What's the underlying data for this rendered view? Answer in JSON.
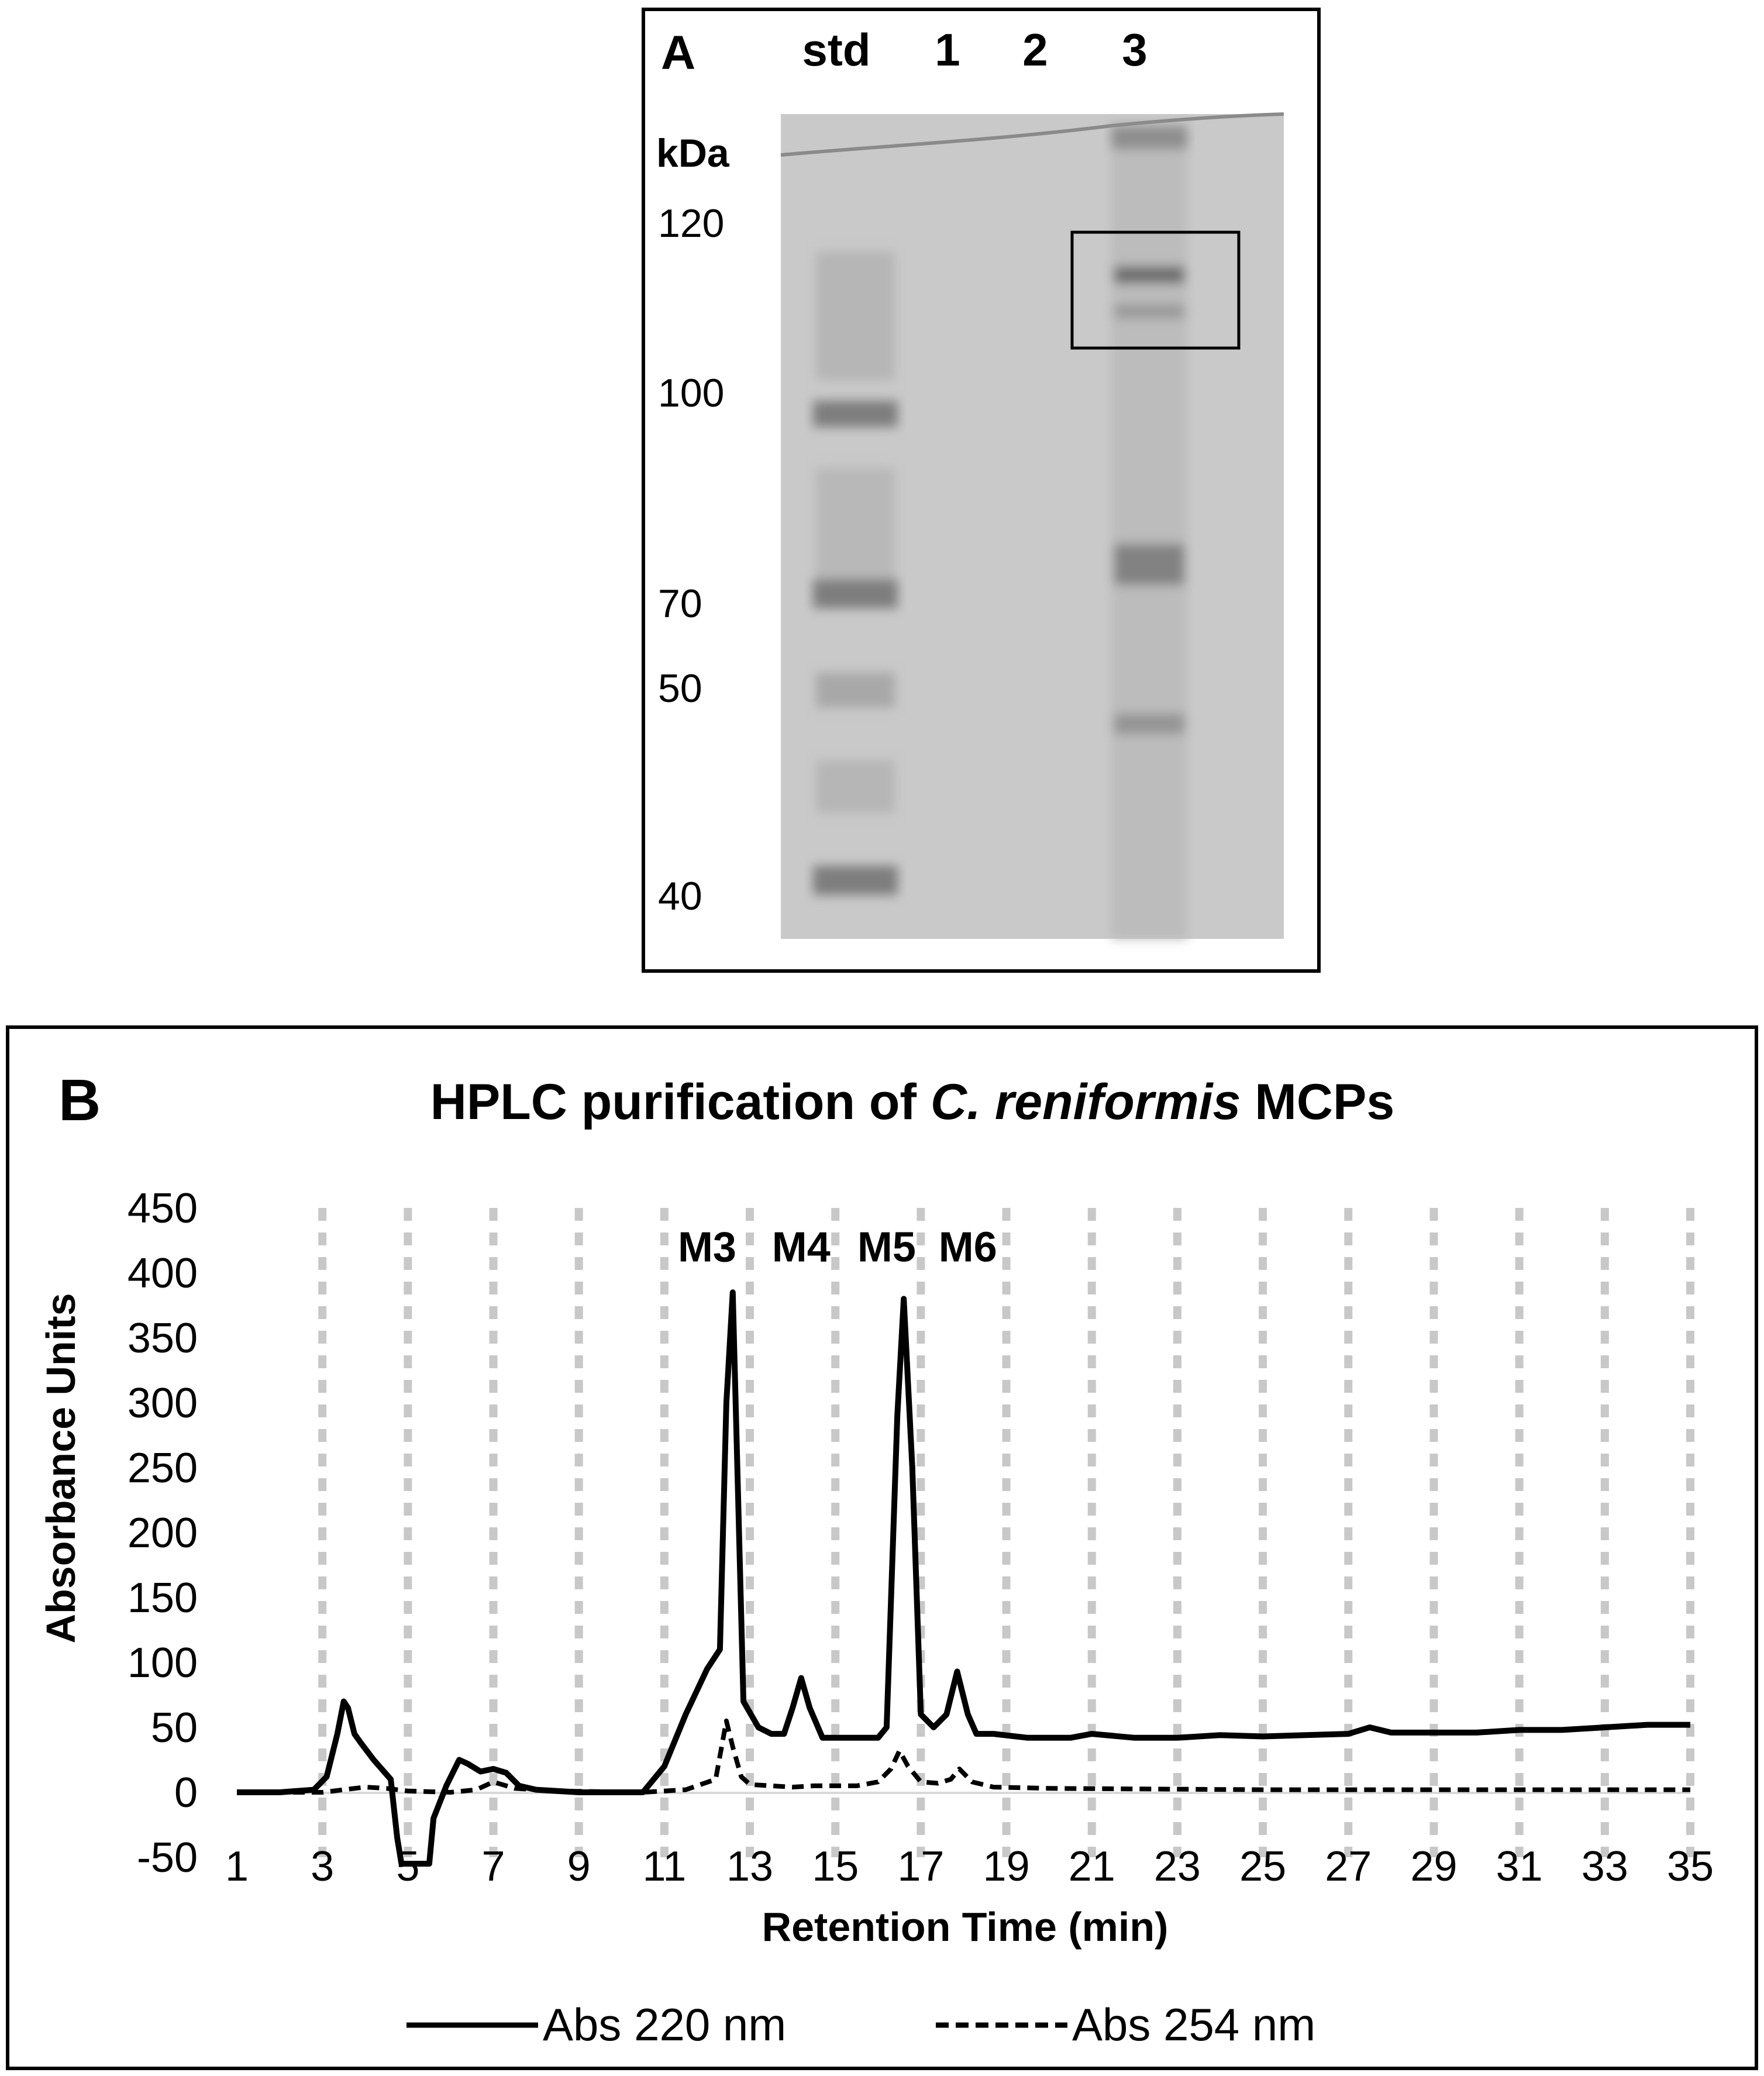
{
  "panel_a": {
    "letter": "A",
    "lanes": [
      "std",
      "1",
      "2",
      "3"
    ],
    "unit": "kDa",
    "markers": [
      "120",
      "100",
      "70",
      "50",
      "40"
    ],
    "gel_color": "#c8c8c8",
    "band_color": "#7a7a7a"
  },
  "chart_data": {
    "type": "line",
    "letter": "B",
    "title_pre": "HPLC purification of ",
    "title_italic": "C. reniformis",
    "title_post": " MCPs",
    "xlabel": "Retention Time (min)",
    "ylabel": "Absorbance Units",
    "xlim": [
      1,
      35
    ],
    "ylim": [
      -50,
      450
    ],
    "xticks": [
      "1",
      "3",
      "5",
      "7",
      "9",
      "11",
      "13",
      "15",
      "17",
      "19",
      "21",
      "23",
      "25",
      "27",
      "29",
      "31",
      "33",
      "35"
    ],
    "yticks": [
      "450",
      "400",
      "350",
      "300",
      "250",
      "200",
      "150",
      "100",
      "50",
      "0",
      "-50"
    ],
    "grid": "vertical dashed",
    "legend": "bottom",
    "annotations": [
      {
        "text": "M3",
        "x": 12.0,
        "y": 420
      },
      {
        "text": "M4",
        "x": 14.2,
        "y": 420
      },
      {
        "text": "M5",
        "x": 16.2,
        "y": 420
      },
      {
        "text": "M6",
        "x": 18.1,
        "y": 420
      }
    ],
    "series": [
      {
        "name": "Abs 220 nm",
        "style": "solid",
        "x": [
          1,
          2,
          2.8,
          3.1,
          3.35,
          3.5,
          3.6,
          3.75,
          3.9,
          4.2,
          4.6,
          4.75,
          4.85,
          5.2,
          5.5,
          5.6,
          5.9,
          6.2,
          6.4,
          6.7,
          7.0,
          7.3,
          7.6,
          8.0,
          9.0,
          10.5,
          11.0,
          11.5,
          12.0,
          12.3,
          12.45,
          12.6,
          12.7,
          12.85,
          13.2,
          13.5,
          13.8,
          14.0,
          14.2,
          14.4,
          14.7,
          15.5,
          16.0,
          16.2,
          16.45,
          16.6,
          16.8,
          17.0,
          17.3,
          17.6,
          17.85,
          18.1,
          18.3,
          18.7,
          19.5,
          20.5,
          21.0,
          22.0,
          23.0,
          24.0,
          25.0,
          26.0,
          27.0,
          27.5,
          28.0,
          29.0,
          30.0,
          31.0,
          32.0,
          33.0,
          34.0,
          35.0
        ],
        "y": [
          0,
          0,
          2,
          12,
          45,
          70,
          65,
          45,
          38,
          25,
          10,
          -35,
          -55,
          -55,
          -55,
          -20,
          5,
          25,
          22,
          16,
          18,
          15,
          5,
          2,
          0,
          0,
          20,
          60,
          95,
          110,
          300,
          385,
          260,
          70,
          50,
          45,
          45,
          65,
          88,
          65,
          42,
          42,
          42,
          50,
          290,
          380,
          250,
          60,
          50,
          60,
          93,
          60,
          45,
          45,
          42,
          42,
          45,
          42,
          42,
          44,
          43,
          44,
          45,
          50,
          46,
          46,
          46,
          48,
          48,
          50,
          52,
          52
        ]
      },
      {
        "name": "Abs 254 nm",
        "style": "dashed",
        "x": [
          1,
          3.0,
          3.5,
          4.0,
          4.5,
          5.0,
          6.0,
          6.6,
          7.0,
          7.5,
          8.5,
          10.5,
          11.5,
          12.2,
          12.45,
          12.6,
          12.8,
          13.0,
          13.5,
          14.0,
          14.5,
          15.0,
          15.5,
          16.0,
          16.3,
          16.5,
          16.7,
          17.0,
          17.4,
          17.7,
          17.9,
          18.2,
          18.7,
          20.0,
          25.0,
          30.0,
          35.0
        ],
        "y": [
          0,
          0,
          2,
          4,
          3,
          1,
          0,
          2,
          8,
          3,
          1,
          0,
          2,
          10,
          55,
          35,
          12,
          6,
          5,
          4,
          5,
          5,
          5,
          8,
          18,
          32,
          20,
          8,
          7,
          10,
          18,
          8,
          4,
          3,
          2,
          2,
          2
        ]
      }
    ],
    "colors": {
      "line": "#000000",
      "grid": "#c8c8c8",
      "frame": "#000000"
    }
  }
}
